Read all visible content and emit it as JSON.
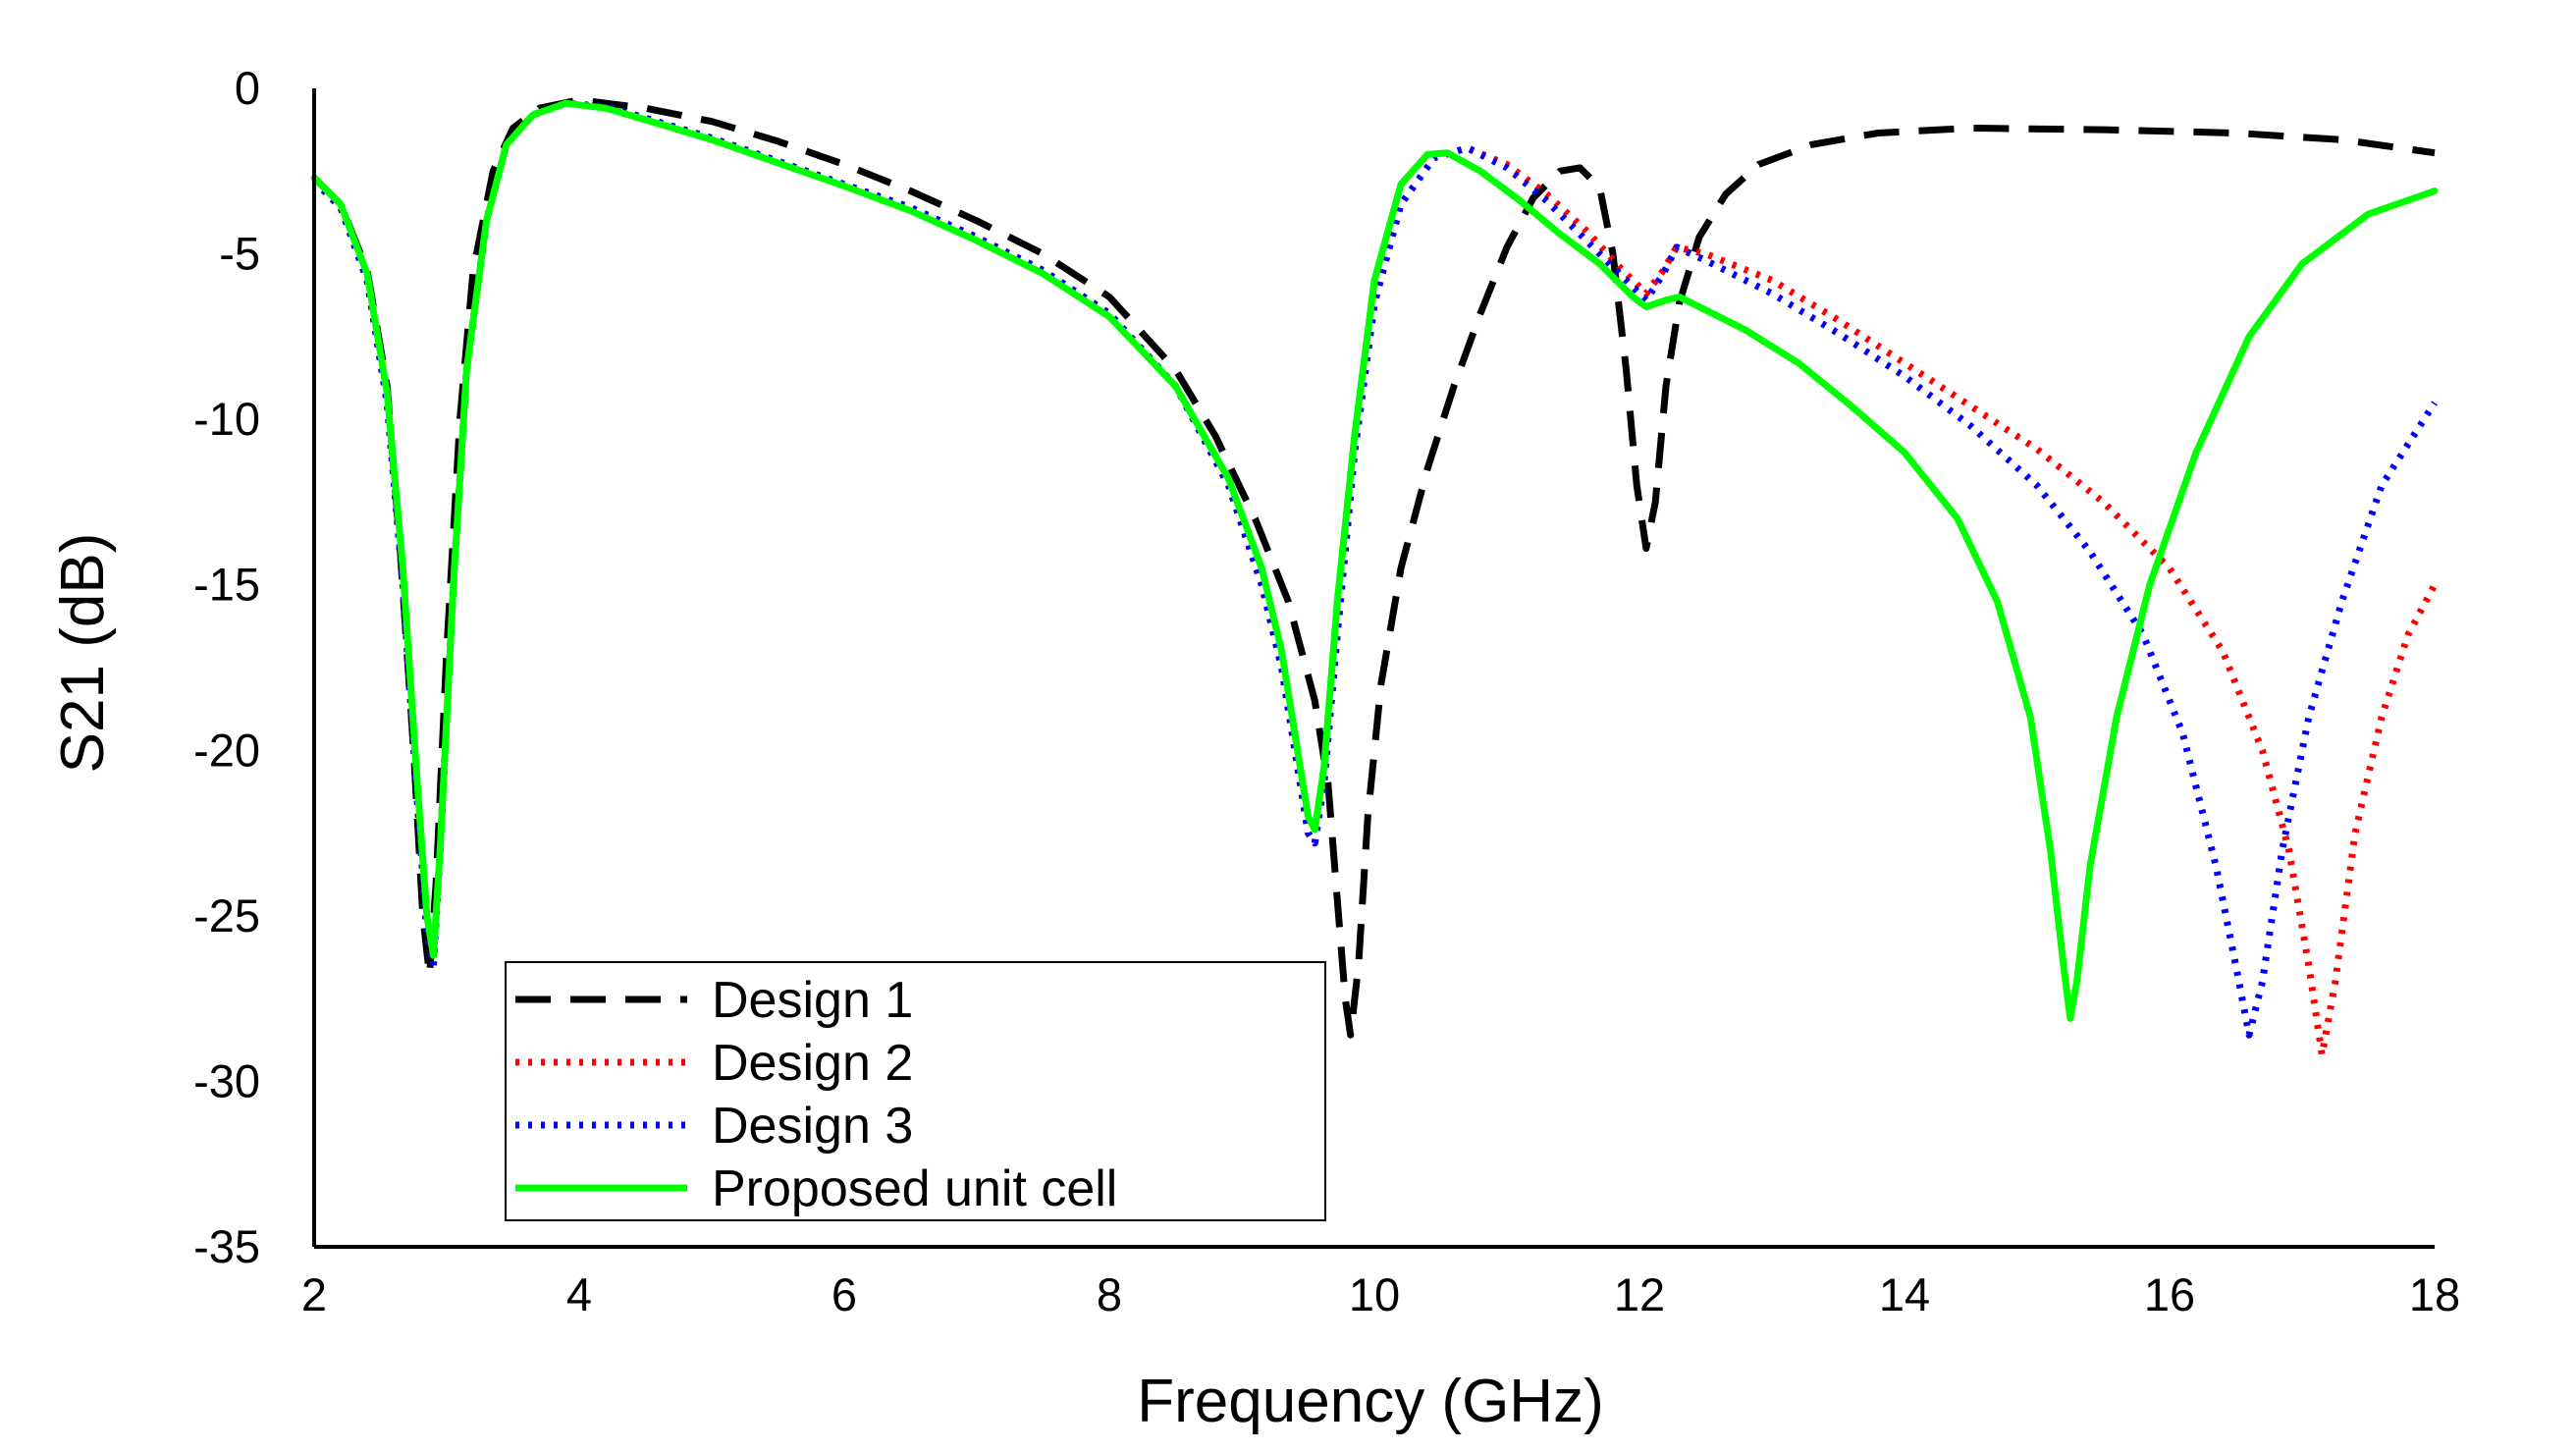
{
  "chart_data": {
    "type": "line",
    "title": "",
    "xlabel": "Frequency (GHz)",
    "ylabel": "S21 (dB)",
    "xlim": [
      2,
      18
    ],
    "ylim": [
      -35,
      0
    ],
    "xticks": [
      2,
      4,
      6,
      8,
      10,
      12,
      14,
      16,
      18
    ],
    "yticks": [
      0,
      -5,
      -10,
      -15,
      -20,
      -25,
      -30,
      -35
    ],
    "grid": false,
    "legend_position": "bottom-left",
    "series": [
      {
        "name": "Design 1",
        "color": "#000000",
        "style": "dashed",
        "points": [
          [
            2,
            -2.7
          ],
          [
            2.2,
            -3.5
          ],
          [
            2.4,
            -5.5
          ],
          [
            2.55,
            -9
          ],
          [
            2.65,
            -14
          ],
          [
            2.75,
            -20
          ],
          [
            2.82,
            -25
          ],
          [
            2.87,
            -26.8
          ],
          [
            2.92,
            -24
          ],
          [
            3.0,
            -17
          ],
          [
            3.1,
            -10
          ],
          [
            3.2,
            -5.5
          ],
          [
            3.35,
            -2.5
          ],
          [
            3.5,
            -1.2
          ],
          [
            3.7,
            -0.6
          ],
          [
            4,
            -0.35
          ],
          [
            4.5,
            -0.6
          ],
          [
            5,
            -1.0
          ],
          [
            5.5,
            -1.6
          ],
          [
            6,
            -2.3
          ],
          [
            6.5,
            -3.1
          ],
          [
            7,
            -4.0
          ],
          [
            7.5,
            -5.0
          ],
          [
            8,
            -6.3
          ],
          [
            8.5,
            -8.5
          ],
          [
            8.8,
            -10.5
          ],
          [
            9.1,
            -13
          ],
          [
            9.35,
            -15.5
          ],
          [
            9.55,
            -18.5
          ],
          [
            9.65,
            -21
          ],
          [
            9.72,
            -24.5
          ],
          [
            9.78,
            -27.5
          ],
          [
            9.82,
            -28.6
          ],
          [
            9.88,
            -26.5
          ],
          [
            9.95,
            -22
          ],
          [
            10.05,
            -18
          ],
          [
            10.2,
            -14.5
          ],
          [
            10.4,
            -11.5
          ],
          [
            10.6,
            -9
          ],
          [
            10.8,
            -6.8
          ],
          [
            11.0,
            -4.8
          ],
          [
            11.2,
            -3.3
          ],
          [
            11.4,
            -2.5
          ],
          [
            11.55,
            -2.4
          ],
          [
            11.7,
            -3.0
          ],
          [
            11.8,
            -5
          ],
          [
            11.9,
            -8.5
          ],
          [
            11.98,
            -12
          ],
          [
            12.05,
            -13.9
          ],
          [
            12.12,
            -12.5
          ],
          [
            12.2,
            -9
          ],
          [
            12.3,
            -6.5
          ],
          [
            12.45,
            -4.5
          ],
          [
            12.65,
            -3.2
          ],
          [
            12.9,
            -2.3
          ],
          [
            13.3,
            -1.7
          ],
          [
            13.8,
            -1.35
          ],
          [
            14.5,
            -1.2
          ],
          [
            15.5,
            -1.25
          ],
          [
            16.5,
            -1.35
          ],
          [
            17.3,
            -1.55
          ],
          [
            18,
            -1.95
          ]
        ]
      },
      {
        "name": "Design 2",
        "color": "#ff0000",
        "style": "dotted",
        "points": [
          [
            2,
            -2.8
          ],
          [
            2.2,
            -3.6
          ],
          [
            2.4,
            -5.8
          ],
          [
            2.55,
            -9.5
          ],
          [
            2.67,
            -15
          ],
          [
            2.77,
            -21
          ],
          [
            2.85,
            -25.5
          ],
          [
            2.9,
            -26.5
          ],
          [
            2.95,
            -23
          ],
          [
            3.05,
            -15
          ],
          [
            3.15,
            -8.5
          ],
          [
            3.3,
            -4
          ],
          [
            3.45,
            -1.7
          ],
          [
            3.65,
            -0.8
          ],
          [
            3.9,
            -0.45
          ],
          [
            4.2,
            -0.55
          ],
          [
            4.5,
            -0.9
          ],
          [
            5,
            -1.5
          ],
          [
            5.5,
            -2.2
          ],
          [
            6,
            -2.9
          ],
          [
            6.5,
            -3.6
          ],
          [
            7,
            -4.5
          ],
          [
            7.5,
            -5.5
          ],
          [
            8,
            -6.8
          ],
          [
            8.5,
            -9
          ],
          [
            8.9,
            -12
          ],
          [
            9.15,
            -15
          ],
          [
            9.3,
            -17.5
          ],
          [
            9.42,
            -20.5
          ],
          [
            9.5,
            -22.5
          ],
          [
            9.55,
            -22.8
          ],
          [
            9.62,
            -21
          ],
          [
            9.72,
            -16.5
          ],
          [
            9.85,
            -11
          ],
          [
            10.0,
            -6.5
          ],
          [
            10.2,
            -3.5
          ],
          [
            10.45,
            -2.1
          ],
          [
            10.7,
            -1.8
          ],
          [
            11.0,
            -2.3
          ],
          [
            11.3,
            -3.2
          ],
          [
            11.6,
            -4.3
          ],
          [
            11.85,
            -5.4
          ],
          [
            12.05,
            -6.2
          ],
          [
            12.18,
            -5.5
          ],
          [
            12.28,
            -4.8
          ],
          [
            12.5,
            -5.0
          ],
          [
            13,
            -5.8
          ],
          [
            13.5,
            -7
          ],
          [
            14,
            -8.3
          ],
          [
            14.5,
            -9.6
          ],
          [
            15,
            -10.9
          ],
          [
            15.5,
            -12.5
          ],
          [
            16,
            -14.5
          ],
          [
            16.4,
            -17
          ],
          [
            16.7,
            -20
          ],
          [
            16.9,
            -23
          ],
          [
            17.05,
            -26.5
          ],
          [
            17.15,
            -29.2
          ],
          [
            17.25,
            -27
          ],
          [
            17.4,
            -22.5
          ],
          [
            17.6,
            -19
          ],
          [
            17.8,
            -16.5
          ],
          [
            18,
            -15
          ]
        ]
      },
      {
        "name": "Design 3",
        "color": "#0000ff",
        "style": "dotted",
        "points": [
          [
            2,
            -2.8
          ],
          [
            2.2,
            -3.6
          ],
          [
            2.4,
            -5.8
          ],
          [
            2.55,
            -9.5
          ],
          [
            2.67,
            -15
          ],
          [
            2.77,
            -21
          ],
          [
            2.85,
            -25.5
          ],
          [
            2.9,
            -26.5
          ],
          [
            2.95,
            -23
          ],
          [
            3.05,
            -15
          ],
          [
            3.15,
            -8.5
          ],
          [
            3.3,
            -4
          ],
          [
            3.45,
            -1.7
          ],
          [
            3.65,
            -0.8
          ],
          [
            3.9,
            -0.45
          ],
          [
            4.2,
            -0.55
          ],
          [
            4.5,
            -0.9
          ],
          [
            5,
            -1.5
          ],
          [
            5.5,
            -2.2
          ],
          [
            6,
            -2.9
          ],
          [
            6.5,
            -3.6
          ],
          [
            7,
            -4.5
          ],
          [
            7.5,
            -5.5
          ],
          [
            8,
            -6.8
          ],
          [
            8.5,
            -9
          ],
          [
            8.9,
            -12
          ],
          [
            9.15,
            -15
          ],
          [
            9.3,
            -17.5
          ],
          [
            9.42,
            -20.5
          ],
          [
            9.5,
            -22.5
          ],
          [
            9.55,
            -22.8
          ],
          [
            9.62,
            -21
          ],
          [
            9.72,
            -16.5
          ],
          [
            9.85,
            -11
          ],
          [
            10.0,
            -6.5
          ],
          [
            10.2,
            -3.5
          ],
          [
            10.45,
            -2.1
          ],
          [
            10.7,
            -1.8
          ],
          [
            11.0,
            -2.4
          ],
          [
            11.3,
            -3.4
          ],
          [
            11.6,
            -4.6
          ],
          [
            11.85,
            -5.6
          ],
          [
            12.05,
            -6.4
          ],
          [
            12.18,
            -5.6
          ],
          [
            12.28,
            -4.8
          ],
          [
            12.5,
            -5.2
          ],
          [
            13,
            -6.2
          ],
          [
            13.5,
            -7.4
          ],
          [
            14,
            -8.7
          ],
          [
            14.5,
            -10.2
          ],
          [
            15,
            -12
          ],
          [
            15.4,
            -14
          ],
          [
            15.8,
            -16.5
          ],
          [
            16.1,
            -19.5
          ],
          [
            16.35,
            -23.5
          ],
          [
            16.5,
            -26.5
          ],
          [
            16.6,
            -28.6
          ],
          [
            16.7,
            -27
          ],
          [
            16.85,
            -23
          ],
          [
            17.05,
            -19
          ],
          [
            17.3,
            -15.5
          ],
          [
            17.6,
            -12
          ],
          [
            18,
            -9.5
          ]
        ]
      },
      {
        "name": "Proposed unit cell",
        "color": "#00ff00",
        "style": "solid",
        "points": [
          [
            2,
            -2.7
          ],
          [
            2.2,
            -3.5
          ],
          [
            2.4,
            -5.6
          ],
          [
            2.55,
            -9.2
          ],
          [
            2.67,
            -14.5
          ],
          [
            2.77,
            -20.5
          ],
          [
            2.85,
            -25
          ],
          [
            2.9,
            -26.2
          ],
          [
            2.95,
            -23
          ],
          [
            3.05,
            -15
          ],
          [
            3.15,
            -8.5
          ],
          [
            3.3,
            -4
          ],
          [
            3.45,
            -1.7
          ],
          [
            3.65,
            -0.8
          ],
          [
            3.9,
            -0.45
          ],
          [
            4.2,
            -0.6
          ],
          [
            4.5,
            -0.95
          ],
          [
            5,
            -1.55
          ],
          [
            5.5,
            -2.25
          ],
          [
            6,
            -2.95
          ],
          [
            6.5,
            -3.7
          ],
          [
            7,
            -4.6
          ],
          [
            7.5,
            -5.6
          ],
          [
            8,
            -6.9
          ],
          [
            8.5,
            -9
          ],
          [
            8.9,
            -11.8
          ],
          [
            9.15,
            -14.5
          ],
          [
            9.3,
            -17
          ],
          [
            9.42,
            -20
          ],
          [
            9.5,
            -22
          ],
          [
            9.55,
            -22.4
          ],
          [
            9.62,
            -20.5
          ],
          [
            9.72,
            -15.5
          ],
          [
            9.85,
            -10.5
          ],
          [
            10.0,
            -5.8
          ],
          [
            10.2,
            -2.9
          ],
          [
            10.4,
            -2.0
          ],
          [
            10.55,
            -1.95
          ],
          [
            10.8,
            -2.5
          ],
          [
            11.1,
            -3.4
          ],
          [
            11.4,
            -4.4
          ],
          [
            11.7,
            -5.3
          ],
          [
            11.95,
            -6.3
          ],
          [
            12.05,
            -6.6
          ],
          [
            12.2,
            -6.4
          ],
          [
            12.3,
            -6.3
          ],
          [
            12.45,
            -6.6
          ],
          [
            12.8,
            -7.3
          ],
          [
            13.2,
            -8.3
          ],
          [
            13.6,
            -9.6
          ],
          [
            14,
            -11
          ],
          [
            14.4,
            -13
          ],
          [
            14.7,
            -15.5
          ],
          [
            14.95,
            -19
          ],
          [
            15.1,
            -23
          ],
          [
            15.2,
            -26.5
          ],
          [
            15.25,
            -28.1
          ],
          [
            15.3,
            -27
          ],
          [
            15.4,
            -23.5
          ],
          [
            15.6,
            -19
          ],
          [
            15.85,
            -15
          ],
          [
            16.2,
            -11
          ],
          [
            16.6,
            -7.5
          ],
          [
            17.0,
            -5.3
          ],
          [
            17.5,
            -3.8
          ],
          [
            18,
            -3.1
          ]
        ]
      }
    ]
  }
}
